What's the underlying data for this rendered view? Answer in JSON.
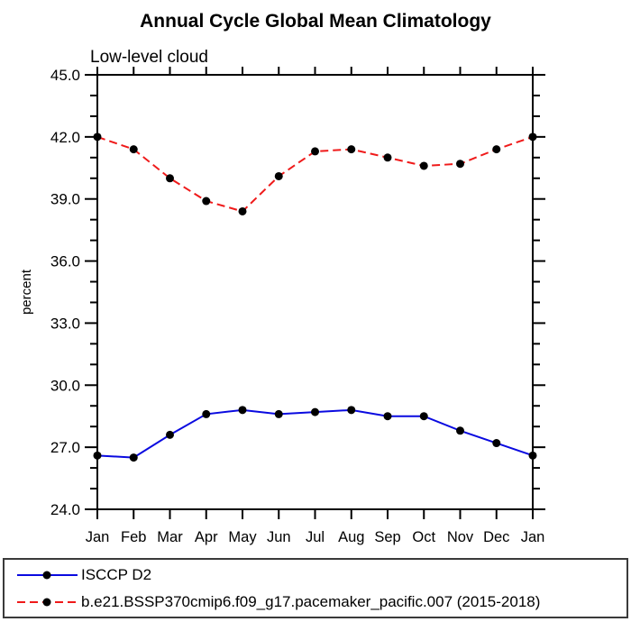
{
  "chart_data": {
    "type": "line",
    "title": "Annual Cycle Global Mean Climatology",
    "subtitle": "Low-level cloud",
    "ylabel": "percent",
    "xlabel": "",
    "categories": [
      "Jan",
      "Feb",
      "Mar",
      "Apr",
      "May",
      "Jun",
      "Jul",
      "Aug",
      "Sep",
      "Oct",
      "Nov",
      "Dec",
      "Jan"
    ],
    "ylim": [
      24.0,
      45.0
    ],
    "ytick_interval": 3.0,
    "ytick_minor_interval": 1.0,
    "ytick_labels": [
      "24.0",
      "27.0",
      "30.0",
      "33.0",
      "36.0",
      "39.0",
      "42.0",
      "45.0"
    ],
    "grid": false,
    "legend_position": "bottom-box",
    "series": [
      {
        "name": "ISCCP D2",
        "color": "#0a0ae0",
        "line_style": "solid",
        "marker": "circle",
        "marker_color": "#000000",
        "values": [
          26.6,
          26.5,
          27.6,
          28.6,
          28.8,
          28.6,
          28.7,
          28.8,
          28.5,
          28.5,
          27.8,
          27.2,
          26.6
        ]
      },
      {
        "name": "b.e21.BSSP370cmip6.f09_g17.pacemaker_pacific.007 (2015-2018)",
        "color": "#ef1a1a",
        "line_style": "dashed",
        "marker": "circle",
        "marker_color": "#000000",
        "values": [
          42.0,
          41.4,
          40.0,
          38.9,
          38.4,
          40.1,
          41.3,
          41.4,
          41.0,
          40.6,
          40.7,
          41.4,
          42.0
        ]
      }
    ]
  },
  "colors": {
    "axis": "#000000",
    "background": "#ffffff",
    "legend_border": "#3a3a3a"
  }
}
